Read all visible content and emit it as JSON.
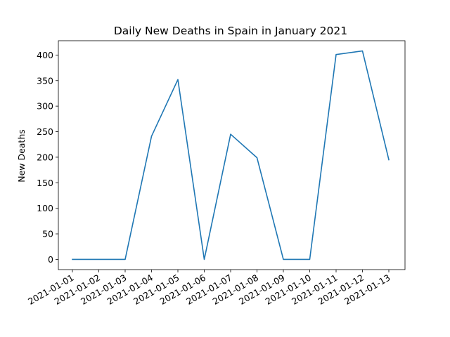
{
  "chart_data": {
    "type": "line",
    "title": "Daily New Deaths in Spain in January 2021",
    "xlabel": "",
    "ylabel": "New Deaths",
    "categories": [
      "2021-01-01",
      "2021-01-02",
      "2021-01-03",
      "2021-01-04",
      "2021-01-05",
      "2021-01-06",
      "2021-01-07",
      "2021-01-08",
      "2021-01-09",
      "2021-01-10",
      "2021-01-11",
      "2021-01-12",
      "2021-01-13"
    ],
    "series": [
      {
        "values": [
          0,
          0,
          0,
          241,
          352,
          0,
          245,
          199,
          0,
          0,
          401,
          408,
          195
        ],
        "color": "#1f77b4"
      }
    ],
    "ylim": [
      -20,
      428
    ],
    "yticks": [
      0,
      50,
      100,
      150,
      200,
      250,
      300,
      350,
      400
    ],
    "grid": false,
    "legend": "none"
  }
}
